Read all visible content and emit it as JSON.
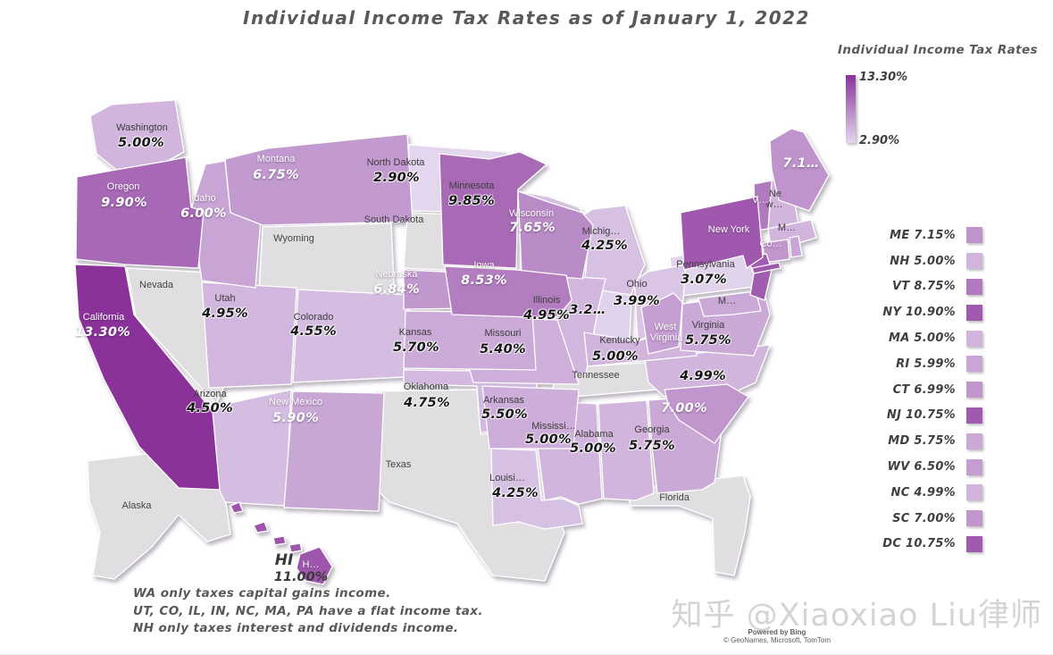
{
  "title": "Individual Income Tax Rates as of January 1, 2022",
  "legend": {
    "title": "Individual Income Tax Rates",
    "max_label": "13.30%",
    "min_label": "2.90%",
    "max_value": 13.3,
    "min_value": 2.9
  },
  "colors": {
    "scale_max": "#8A3399",
    "scale_min": "#E3D6EE",
    "no_data": "#E0DEE1",
    "map_border": "#FFFFFF"
  },
  "chart_data": {
    "type": "choropleth_map",
    "region": "United States",
    "unit": "percent",
    "states": [
      {
        "id": "WA",
        "map_label": "Washington",
        "map_rate": "5.00%",
        "rate": 5.0
      },
      {
        "id": "OR",
        "map_label": "Oregon",
        "map_rate": "9.90%",
        "rate": 9.9
      },
      {
        "id": "CA",
        "map_label": "California",
        "map_rate": "13.30%",
        "rate": 13.3
      },
      {
        "id": "NV",
        "map_label": "Nevada",
        "map_rate": "",
        "rate": null
      },
      {
        "id": "ID",
        "map_label": "Idaho",
        "map_rate": "6.00%",
        "rate": 6.0
      },
      {
        "id": "MT",
        "map_label": "Montana",
        "map_rate": "6.75%",
        "rate": 6.75
      },
      {
        "id": "WY",
        "map_label": "Wyoming",
        "map_rate": "",
        "rate": null
      },
      {
        "id": "UT",
        "map_label": "Utah",
        "map_rate": "4.95%",
        "rate": 4.95
      },
      {
        "id": "CO",
        "map_label": "Colorado",
        "map_rate": "4.55%",
        "rate": 4.55
      },
      {
        "id": "AZ",
        "map_label": "Arizona",
        "map_rate": "4.50%",
        "rate": 4.5
      },
      {
        "id": "NM",
        "map_label": "New Mexico",
        "map_rate": "5.90%",
        "rate": 5.9
      },
      {
        "id": "ND",
        "map_label": "North Dakota",
        "map_rate": "2.90%",
        "rate": 2.9
      },
      {
        "id": "SD",
        "map_label": "South Dakota",
        "map_rate": "",
        "rate": null
      },
      {
        "id": "NE",
        "map_label": "Nebraska",
        "map_rate": "6.84%",
        "rate": 6.84
      },
      {
        "id": "KS",
        "map_label": "Kansas",
        "map_rate": "5.70%",
        "rate": 5.7
      },
      {
        "id": "OK",
        "map_label": "Oklahoma",
        "map_rate": "4.75%",
        "rate": 4.75
      },
      {
        "id": "TX",
        "map_label": "Texas",
        "map_rate": "",
        "rate": null
      },
      {
        "id": "MN",
        "map_label": "Minnesota",
        "map_rate": "9.85%",
        "rate": 9.85
      },
      {
        "id": "IA",
        "map_label": "Iowa",
        "map_rate": "8.53%",
        "rate": 8.53
      },
      {
        "id": "MO",
        "map_label": "Missouri",
        "map_rate": "5.40%",
        "rate": 5.4
      },
      {
        "id": "AR",
        "map_label": "Arkansas",
        "map_rate": "5.50%",
        "rate": 5.5
      },
      {
        "id": "LA",
        "map_label": "Louisi…",
        "map_rate": "4.25%",
        "rate": 4.25
      },
      {
        "id": "WI",
        "map_label": "Wisconsin",
        "map_rate": "7.65%",
        "rate": 7.65
      },
      {
        "id": "IL",
        "map_label": "Illinois",
        "map_rate": "4.95%",
        "rate": 4.95
      },
      {
        "id": "IN",
        "map_label": "",
        "map_rate": "3.2…",
        "rate": 3.2
      },
      {
        "id": "MS",
        "map_label": "Mississi…",
        "map_rate": "5.00%",
        "rate": 5.0
      },
      {
        "id": "MI",
        "map_label": "Michig…",
        "map_rate": "4.25%",
        "rate": 4.25
      },
      {
        "id": "OH",
        "map_label": "Ohio",
        "map_rate": "3.99%",
        "rate": 3.99
      },
      {
        "id": "KY",
        "map_label": "Kentucky",
        "map_rate": "5.00%",
        "rate": 5.0
      },
      {
        "id": "TN",
        "map_label": "Tennessee",
        "map_rate": "",
        "rate": null
      },
      {
        "id": "AL",
        "map_label": "Alabama",
        "map_rate": "5.00%",
        "rate": 5.0
      },
      {
        "id": "GA",
        "map_label": "Georgia",
        "map_rate": "5.75%",
        "rate": 5.75
      },
      {
        "id": "FL",
        "map_label": "Florida",
        "map_rate": "",
        "rate": null
      },
      {
        "id": "SC",
        "map_label": "",
        "map_rate": "7.00%",
        "rate": 7.0
      },
      {
        "id": "NC",
        "map_label": "",
        "map_rate": "4.99%",
        "rate": 4.99
      },
      {
        "id": "VA",
        "map_label": "Virginia",
        "map_rate": "5.75%",
        "rate": 5.75
      },
      {
        "id": "WV",
        "map_label": "West",
        "map_label2": "Virginia",
        "map_rate": "",
        "rate": 6.5
      },
      {
        "id": "PA",
        "map_label": "Pennsylvania",
        "map_rate": "3.07%",
        "rate": 3.07
      },
      {
        "id": "NY",
        "map_label": "New York",
        "map_rate": "",
        "rate": 10.9
      },
      {
        "id": "ME",
        "map_label": "",
        "map_rate": "7.1…",
        "rate": 7.15
      },
      {
        "id": "VT",
        "map_label": "V…",
        "map_rate": "",
        "rate": 8.75
      },
      {
        "id": "NH",
        "map_label": "Ne",
        "map_label2": "w…",
        "map_rate": "",
        "rate": 5.0
      },
      {
        "id": "MA",
        "map_label": "M…",
        "map_rate": "",
        "rate": 5.0
      },
      {
        "id": "CT",
        "map_label": "Co…",
        "map_rate": "",
        "rate": 6.99
      },
      {
        "id": "RI",
        "map_label": "",
        "map_rate": "",
        "rate": 5.99
      },
      {
        "id": "NJ",
        "map_label": "",
        "map_rate": "",
        "rate": 10.75
      },
      {
        "id": "MD",
        "map_label": "M…",
        "map_rate": "",
        "rate": 5.75
      },
      {
        "id": "AK",
        "map_label": "Alaska",
        "map_rate": "",
        "rate": null
      },
      {
        "id": "HI",
        "map_label": "H…",
        "map_rate": "",
        "rate": 11.0
      }
    ]
  },
  "side_list": {
    "items": [
      {
        "label": "ME 7.15%",
        "rate": 7.15
      },
      {
        "label": "NH 5.00%",
        "rate": 5.0
      },
      {
        "label": "VT 8.75%",
        "rate": 8.75
      },
      {
        "label": "NY 10.90%",
        "rate": 10.9
      },
      {
        "label": "MA 5.00%",
        "rate": 5.0
      },
      {
        "label": "RI 5.99%",
        "rate": 5.99
      },
      {
        "label": "CT 6.99%",
        "rate": 6.99
      },
      {
        "label": "NJ 10.75%",
        "rate": 10.75
      },
      {
        "label": "MD 5.75%",
        "rate": 5.75
      },
      {
        "label": "WV 6.50%",
        "rate": 6.5
      },
      {
        "label": "NC 4.99%",
        "rate": 4.99
      },
      {
        "label": "SC 7.00%",
        "rate": 7.0
      },
      {
        "label": "DC 10.75%",
        "rate": 10.75
      }
    ]
  },
  "annotations": {
    "hawaii_abbr": "HI",
    "hawaii_rate": "11.00%"
  },
  "notes": [
    "WA only taxes capital gains income.",
    "UT, CO, IL, IN, NC, MA, PA have a flat income tax.",
    "NH only taxes interest and dividends income."
  ],
  "watermark": "知乎 @Xiaoxiao Liu律师",
  "attribution": {
    "powered": "Powered by Bing",
    "credits": "© GeoNames, Microsoft, TomTom"
  }
}
